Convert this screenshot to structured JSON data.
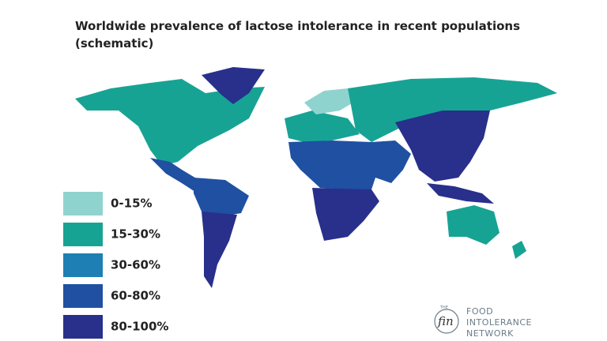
{
  "title": "Worldwide prevalence of lactose intolerance in recent populations",
  "subtitle": "(schematic)",
  "legend": {
    "items": [
      {
        "label": "0-15%",
        "color": "#8fd3cf"
      },
      {
        "label": "15-30%",
        "color": "#17a394"
      },
      {
        "label": "30-60%",
        "color": "#1d7fb3"
      },
      {
        "label": "60-80%",
        "color": "#1f50a2"
      },
      {
        "label": "80-100%",
        "color": "#28308b"
      }
    ]
  },
  "logo": {
    "mark": "fin",
    "prefix": "THE",
    "lines": [
      "FOOD",
      "INTOLERANCE",
      "NETWORK"
    ]
  }
}
